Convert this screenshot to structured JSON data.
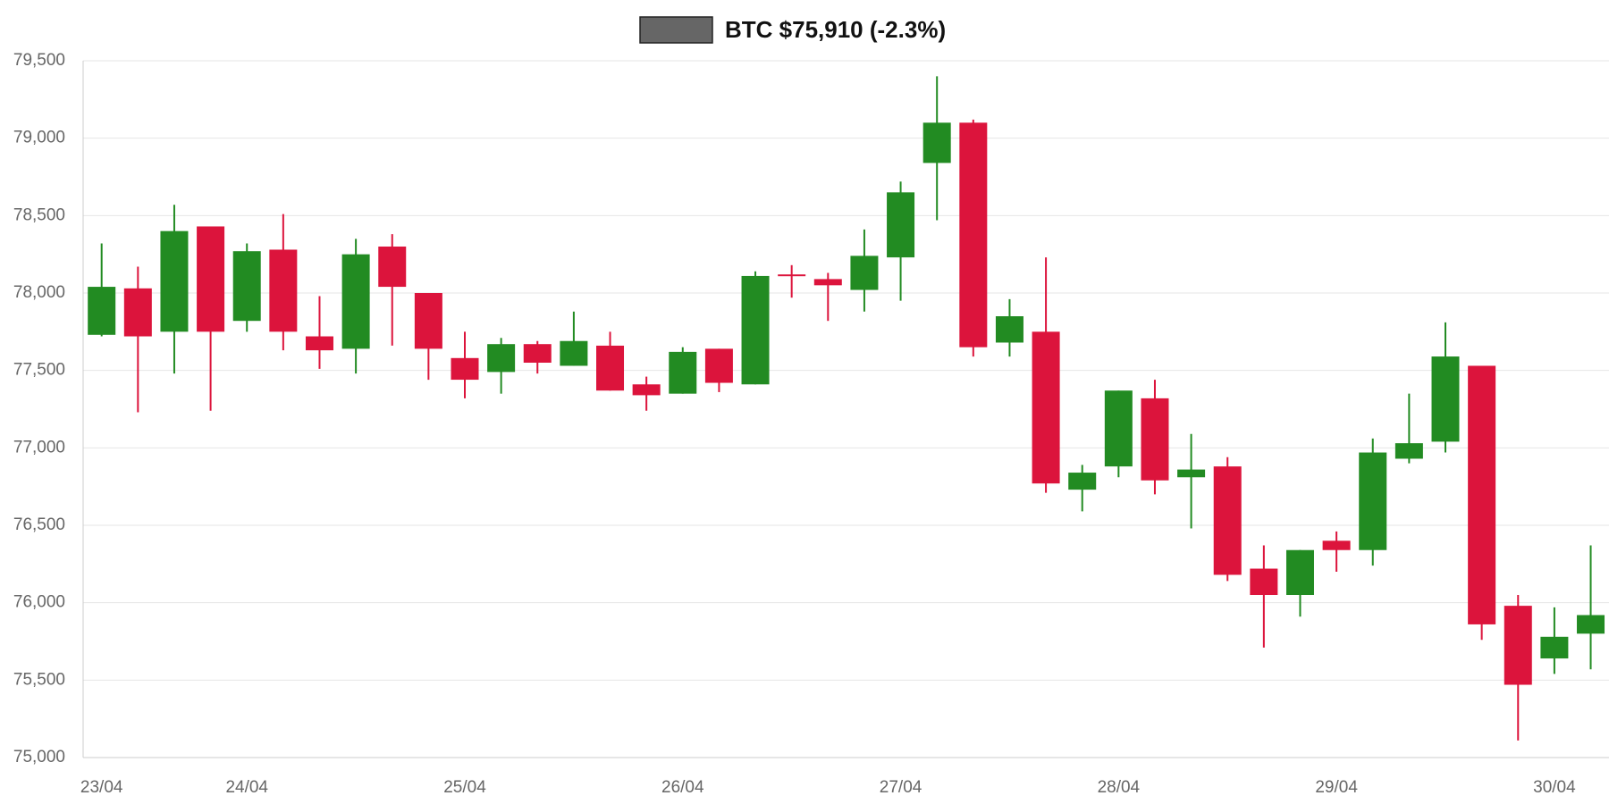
{
  "chart_data": {
    "type": "candlestick",
    "series": [
      {
        "name": "BTC $75,910 (-2.3%)",
        "color": "#666666"
      }
    ],
    "up_color": "#228b22",
    "down_color": "#dc143c",
    "categories": [
      "23/04",
      null,
      null,
      null,
      "24/04",
      null,
      null,
      null,
      null,
      null,
      "25/04",
      null,
      null,
      null,
      null,
      null,
      "26/04",
      null,
      null,
      null,
      null,
      null,
      "27/04",
      null,
      null,
      null,
      null,
      null,
      "28/04",
      null,
      null,
      null,
      null,
      null,
      "29/04",
      null,
      null,
      null,
      null,
      null,
      "30/04",
      null
    ],
    "open": [
      77730,
      78030,
      77750,
      78430,
      77820,
      78280,
      77720,
      77640,
      78300,
      78000,
      77580,
      77490,
      77670,
      77530,
      77660,
      77410,
      77350,
      77640,
      77410,
      78120,
      78090,
      78020,
      78230,
      78840,
      79100,
      77680,
      77750,
      76730,
      76880,
      77320,
      76810,
      76880,
      76220,
      76050,
      76400,
      76340,
      76930,
      77040,
      77530,
      75980,
      75640,
      75800
    ],
    "high": [
      78320,
      78170,
      78570,
      78430,
      78320,
      78510,
      77980,
      78350,
      78380,
      78000,
      77750,
      77710,
      77690,
      77880,
      77750,
      77460,
      77650,
      77640,
      78140,
      78180,
      78130,
      78410,
      78720,
      79400,
      79120,
      77960,
      78230,
      76890,
      77370,
      77440,
      77090,
      76940,
      76370,
      76340,
      76460,
      77060,
      77350,
      77810,
      77530,
      76050,
      75970,
      76370
    ],
    "low": [
      77720,
      77230,
      77480,
      77240,
      77750,
      77630,
      77510,
      77480,
      77660,
      77440,
      77320,
      77350,
      77480,
      77530,
      77370,
      77240,
      77350,
      77360,
      77410,
      77970,
      77820,
      77880,
      77950,
      78470,
      77590,
      77590,
      76710,
      76590,
      76810,
      76700,
      76480,
      76140,
      75710,
      75910,
      76200,
      76240,
      76900,
      76970,
      75760,
      75110,
      75540,
      75570
    ],
    "close": [
      78040,
      77720,
      78400,
      77750,
      78270,
      77750,
      77630,
      78250,
      78040,
      77640,
      77440,
      77670,
      77550,
      77690,
      77370,
      77340,
      77620,
      77420,
      78110,
      78110,
      78050,
      78240,
      78650,
      79100,
      77650,
      77850,
      76770,
      76840,
      77370,
      76790,
      76860,
      76180,
      76050,
      76340,
      76340,
      76970,
      77030,
      77590,
      75860,
      75470,
      75780,
      75920
    ],
    "ylim": [
      75000,
      79500
    ],
    "yticks": [
      {
        "value": 75000,
        "label": "75,000"
      },
      {
        "value": 75500,
        "label": "75,500"
      },
      {
        "value": 76000,
        "label": "76,000"
      },
      {
        "value": 76500,
        "label": "76,500"
      },
      {
        "value": 77000,
        "label": "77,000"
      },
      {
        "value": 77500,
        "label": "77,500"
      },
      {
        "value": 78000,
        "label": "78,000"
      },
      {
        "value": 78500,
        "label": "78,500"
      },
      {
        "value": 79000,
        "label": "79,000"
      },
      {
        "value": 79500,
        "label": "79,500"
      }
    ],
    "grid": true
  }
}
